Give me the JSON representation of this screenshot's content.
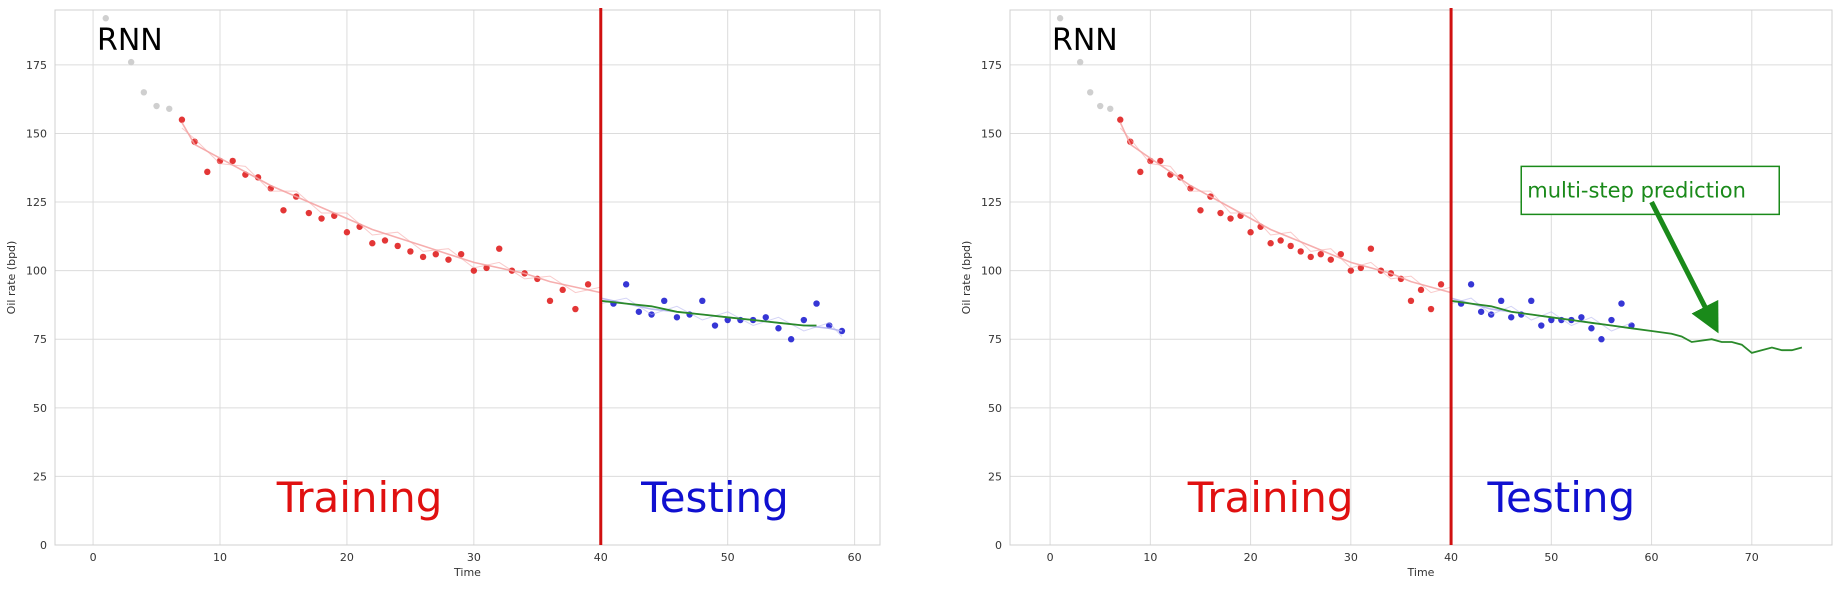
{
  "chart_data": [
    {
      "type": "line",
      "title": "RNN",
      "xlabel": "Time",
      "ylabel": "Oil rate (bpd)",
      "xlim": [
        -3,
        62
      ],
      "ylim": [
        0,
        195
      ],
      "xticks": [
        0,
        10,
        20,
        30,
        40,
        50,
        60
      ],
      "yticks": [
        0,
        25,
        50,
        75,
        100,
        125,
        150,
        175
      ],
      "grid": true,
      "split_x": 40,
      "region_labels": [
        {
          "text": "Training",
          "color": "#e01010",
          "x": 21,
          "y": 12
        },
        {
          "text": "Testing",
          "color": "#1010d0",
          "x": 49,
          "y": 12
        }
      ],
      "series": [
        {
          "role": "history",
          "color": "#cfcfcf",
          "x": [
            1,
            3,
            4,
            5,
            6
          ],
          "y": [
            192,
            176,
            165,
            160,
            159
          ]
        },
        {
          "role": "training_observed",
          "color": "#e02020",
          "x": [
            7,
            8,
            9,
            10,
            11,
            12,
            13,
            14,
            15,
            16,
            17,
            18,
            19,
            20,
            21,
            22,
            23,
            24,
            25,
            26,
            27,
            28,
            29,
            30,
            31,
            32,
            33,
            34,
            35,
            36,
            37,
            38,
            39
          ],
          "y": [
            155,
            147,
            136,
            140,
            140,
            135,
            134,
            130,
            122,
            127,
            121,
            119,
            120,
            114,
            116,
            110,
            111,
            109,
            107,
            105,
            106,
            104,
            106,
            100,
            101,
            108,
            100,
            99,
            97,
            89,
            93,
            86,
            95
          ]
        },
        {
          "role": "training_fit",
          "color": "#f4a0a0",
          "x": [
            7,
            8,
            10,
            12,
            14,
            16,
            18,
            20,
            22,
            24,
            26,
            28,
            30,
            32,
            34,
            36,
            38,
            40
          ],
          "y": [
            154,
            146,
            141,
            136,
            131,
            127,
            123,
            119,
            115,
            112,
            109,
            106,
            103,
            101,
            99,
            96,
            94,
            92
          ]
        },
        {
          "role": "testing_observed",
          "color": "#2020d0",
          "x": [
            41,
            42,
            43,
            44,
            45,
            46,
            47,
            48,
            49,
            50,
            51,
            52,
            53,
            54,
            55,
            56,
            57,
            58,
            59
          ],
          "y": [
            88,
            95,
            85,
            84,
            89,
            83,
            84,
            89,
            80,
            82,
            82,
            82,
            83,
            79,
            75,
            82,
            88,
            80,
            78
          ]
        },
        {
          "role": "testing_fit",
          "color": "#b0b0ee",
          "x": [
            40,
            42,
            44,
            46,
            48,
            50,
            52,
            54,
            56,
            58,
            59
          ],
          "y": [
            90,
            88,
            86,
            85,
            84,
            83,
            82,
            81,
            80,
            79,
            78
          ]
        },
        {
          "role": "prediction",
          "color": "#2a8a2a",
          "x": [
            40,
            42,
            44,
            46,
            48,
            50,
            52,
            54,
            56,
            57
          ],
          "y": [
            89,
            88,
            87,
            85,
            84,
            83,
            82,
            81,
            80,
            80
          ]
        }
      ]
    },
    {
      "type": "line",
      "title": "RNN",
      "xlabel": "Time",
      "ylabel": "Oil rate (bpd)",
      "xlim": [
        -4,
        78
      ],
      "ylim": [
        0,
        195
      ],
      "xticks": [
        0,
        10,
        20,
        30,
        40,
        50,
        60,
        70
      ],
      "yticks": [
        0,
        25,
        50,
        75,
        100,
        125,
        150,
        175
      ],
      "grid": true,
      "split_x": 40,
      "region_labels": [
        {
          "text": "Training",
          "color": "#e01010",
          "x": 22,
          "y": 12
        },
        {
          "text": "Testing",
          "color": "#1010d0",
          "x": 51,
          "y": 12
        }
      ],
      "annotation": {
        "text": "multi-step prediction",
        "color": "#1a8a1a",
        "box_x": 47,
        "box_y": 138,
        "arrow_from": [
          60,
          125
        ],
        "arrow_to": [
          66,
          82
        ]
      },
      "series": [
        {
          "role": "history",
          "color": "#cfcfcf",
          "x": [
            1,
            3,
            4,
            5,
            6
          ],
          "y": [
            192,
            176,
            165,
            160,
            159
          ]
        },
        {
          "role": "training_observed",
          "color": "#e02020",
          "x": [
            7,
            8,
            9,
            10,
            11,
            12,
            13,
            14,
            15,
            16,
            17,
            18,
            19,
            20,
            21,
            22,
            23,
            24,
            25,
            26,
            27,
            28,
            29,
            30,
            31,
            32,
            33,
            34,
            35,
            36,
            37,
            38,
            39
          ],
          "y": [
            155,
            147,
            136,
            140,
            140,
            135,
            134,
            130,
            122,
            127,
            121,
            119,
            120,
            114,
            116,
            110,
            111,
            109,
            107,
            105,
            106,
            104,
            106,
            100,
            101,
            108,
            100,
            99,
            97,
            89,
            93,
            86,
            95
          ]
        },
        {
          "role": "training_fit",
          "color": "#f4a0a0",
          "x": [
            7,
            8,
            10,
            12,
            14,
            16,
            18,
            20,
            22,
            24,
            26,
            28,
            30,
            32,
            34,
            36,
            38,
            40
          ],
          "y": [
            154,
            146,
            141,
            136,
            131,
            127,
            123,
            119,
            115,
            112,
            109,
            106,
            103,
            101,
            99,
            96,
            94,
            92
          ]
        },
        {
          "role": "testing_observed",
          "color": "#2020d0",
          "x": [
            41,
            42,
            43,
            44,
            45,
            46,
            47,
            48,
            49,
            50,
            51,
            52,
            53,
            54,
            55,
            56,
            57,
            58
          ],
          "y": [
            88,
            95,
            85,
            84,
            89,
            83,
            84,
            89,
            80,
            82,
            82,
            82,
            83,
            79,
            75,
            82,
            88,
            80
          ]
        },
        {
          "role": "testing_fit",
          "color": "#b0b0ee",
          "x": [
            40,
            42,
            44,
            46,
            48,
            50,
            52,
            54,
            56,
            58
          ],
          "y": [
            90,
            88,
            86,
            85,
            84,
            83,
            82,
            81,
            80,
            79
          ]
        },
        {
          "role": "prediction",
          "color": "#2a8a2a",
          "x": [
            40,
            42,
            44,
            46,
            48,
            50,
            52,
            54,
            56,
            58,
            60,
            62,
            63,
            64,
            66,
            67,
            68,
            69,
            70,
            72,
            73,
            74,
            75
          ],
          "y": [
            89,
            88,
            87,
            85,
            84,
            83,
            82,
            81,
            80,
            79,
            78,
            77,
            76,
            74,
            75,
            74,
            74,
            73,
            70,
            72,
            71,
            71,
            72
          ]
        }
      ]
    }
  ]
}
